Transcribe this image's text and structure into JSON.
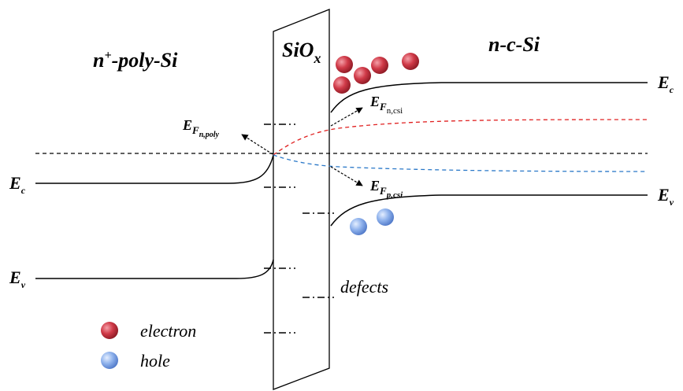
{
  "regions": {
    "left": {
      "base": "n",
      "sup": "+",
      "rest": "-poly-Si"
    },
    "oxide": {
      "base": "SiO",
      "sub": "x"
    },
    "right": "n-c-Si"
  },
  "bands": {
    "left_ec": {
      "base": "E",
      "sub": "c"
    },
    "left_ev": {
      "base": "E",
      "sub": "v"
    },
    "right_ec": {
      "base": "E",
      "sub": "c"
    },
    "right_ev": {
      "base": "E",
      "sub": "v"
    }
  },
  "fermi": {
    "n_poly": {
      "base": "E",
      "sub": "F",
      "subsub": "n,poly"
    },
    "n_csi": {
      "base": "E",
      "sub": "F",
      "subsub": "n,csi"
    },
    "p_csi": {
      "base": "E",
      "sub": "F",
      "subsub": "p,csi"
    }
  },
  "defects": "defects",
  "legend": {
    "electron": "electron",
    "hole": "hole"
  }
}
